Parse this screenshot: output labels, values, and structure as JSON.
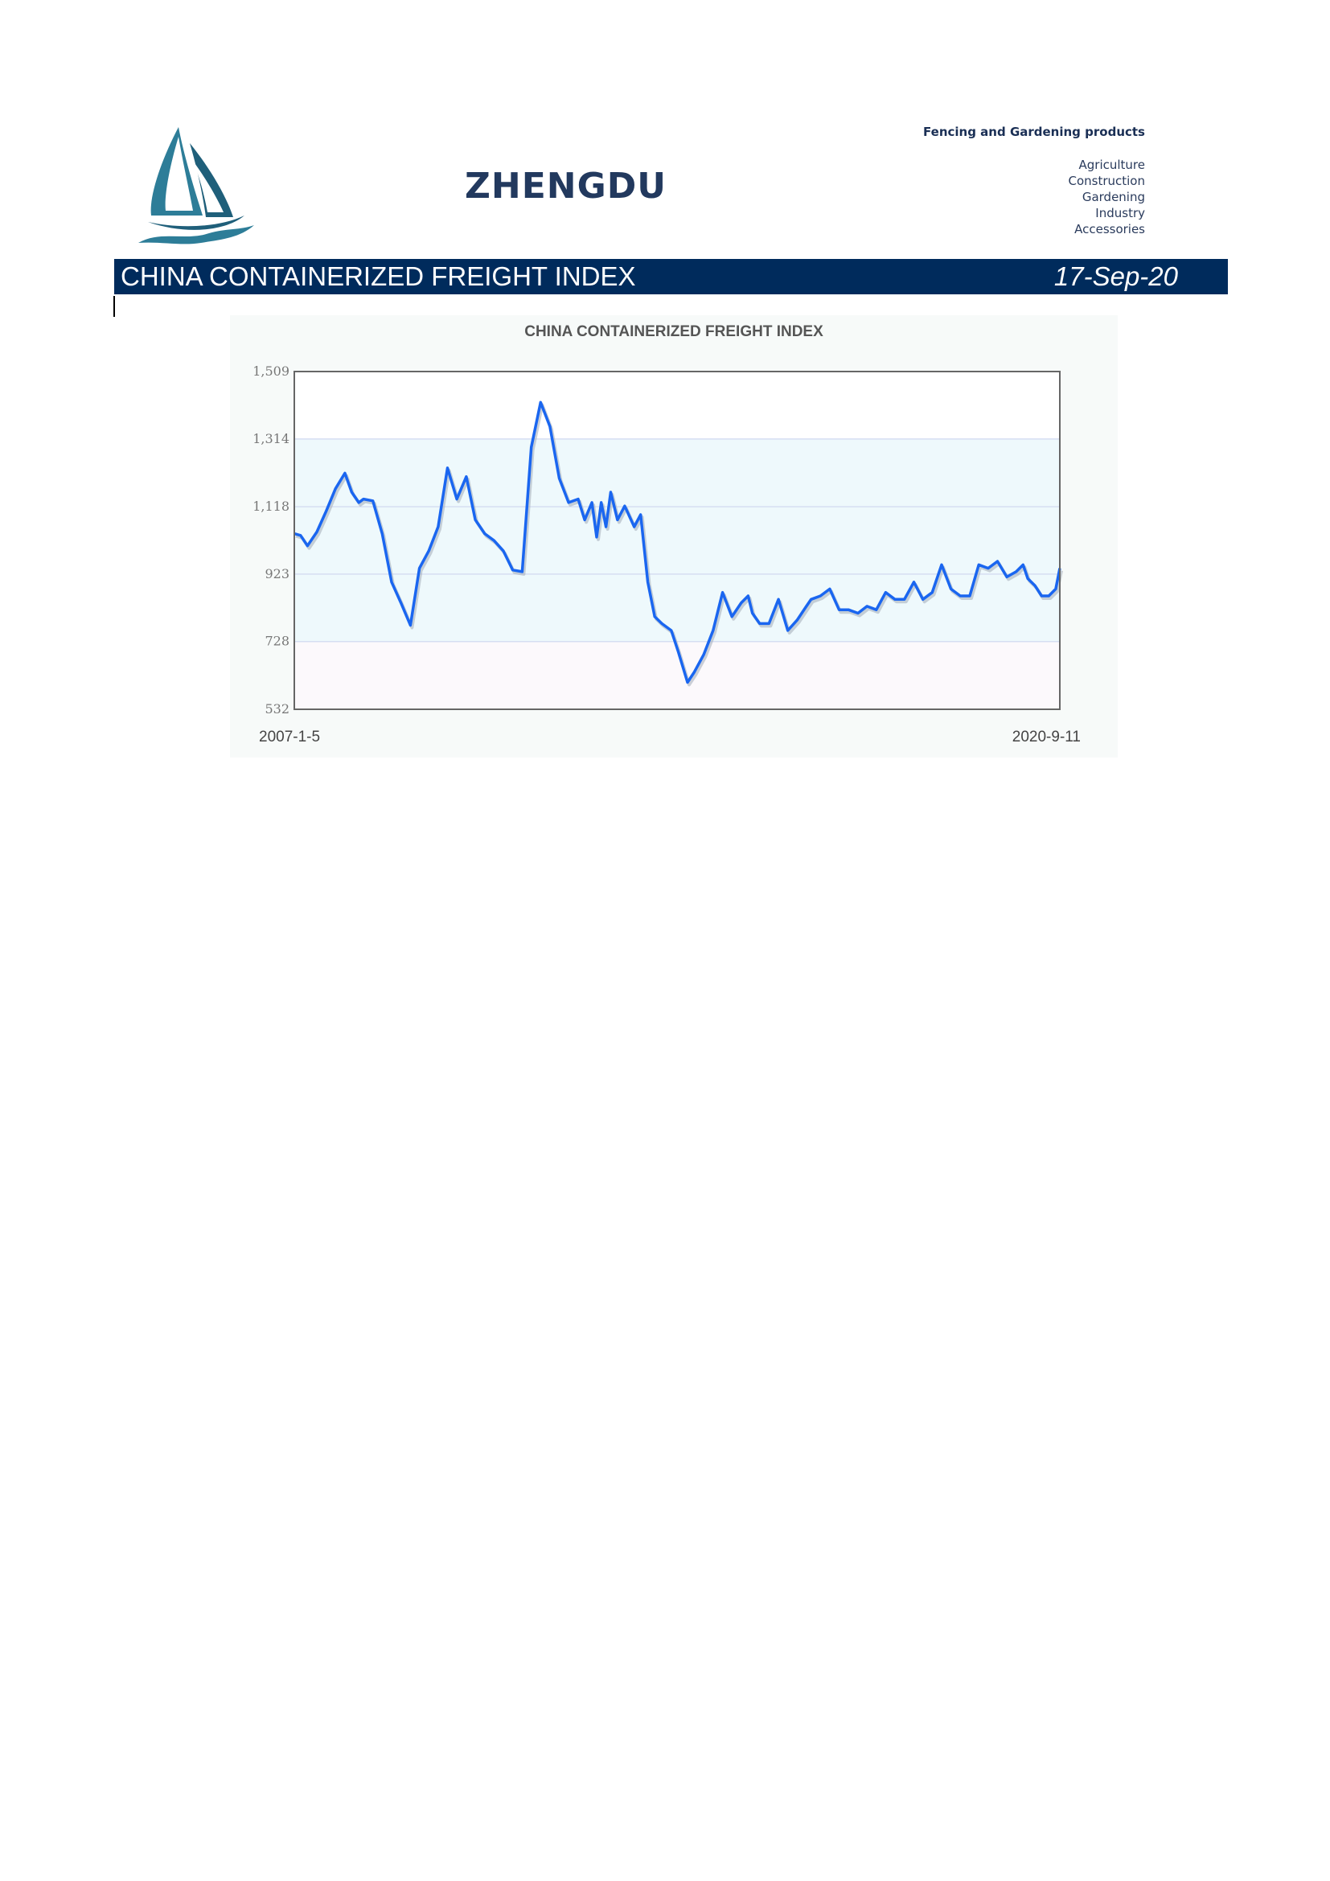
{
  "header": {
    "brand": "ZHENGDU",
    "tagline": "Fencing and Gardening products",
    "categories": [
      "Agriculture",
      "Construction",
      "Gardening",
      "Industry",
      "Accessories"
    ]
  },
  "title_bar": {
    "heading": "CHINA CONTAINERIZED FREIGHT INDEX",
    "date": "17-Sep-20"
  },
  "colors": {
    "title_bar_bg": "#002b5c",
    "brand_text": "#22395e",
    "line": "#1a66f0",
    "line_shadow": "#a9b0bc",
    "band_blue": "#eef9fc",
    "band_pink": "#fcf9fc",
    "grid": "#d6def2",
    "logo_teal": "#1f5f7a"
  },
  "chart_data": {
    "type": "line",
    "title": "CHINA CONTAINERIZED FREIGHT INDEX",
    "x_start_label": "2007-1-5",
    "x_end_label": "2020-9-11",
    "x_range": [
      "2007-01-05",
      "2020-09-11"
    ],
    "y_ticks": [
      "532",
      "728",
      "923",
      "1,118",
      "1,314",
      "1,509"
    ],
    "ylim": [
      532,
      1509
    ],
    "grid": true,
    "series": [
      {
        "x": [
          "2007-01-05",
          "2007-02-15",
          "2007-04-01",
          "2007-06-01",
          "2007-08-01",
          "2007-10-01",
          "2007-12-01",
          "2008-01-15",
          "2008-03-01",
          "2008-04-01",
          "2008-06-01",
          "2008-08-01",
          "2008-10-01",
          "2008-12-01",
          "2009-02-01",
          "2009-04-01",
          "2009-06-01",
          "2009-08-01",
          "2009-10-01",
          "2009-12-01",
          "2010-02-01",
          "2010-04-01",
          "2010-06-01",
          "2010-08-01",
          "2010-10-01",
          "2010-12-01",
          "2011-02-01",
          "2011-04-01",
          "2011-06-01",
          "2011-08-01",
          "2011-10-01",
          "2011-12-01",
          "2012-02-01",
          "2012-03-15",
          "2012-05-01",
          "2012-06-01",
          "2012-07-01",
          "2012-08-01",
          "2012-09-01",
          "2012-10-15",
          "2012-12-01",
          "2013-02-01",
          "2013-03-15",
          "2013-05-01",
          "2013-06-15",
          "2013-08-01",
          "2013-10-01",
          "2013-11-15",
          "2014-01-15",
          "2014-03-01",
          "2014-05-01",
          "2014-07-01",
          "2014-09-01",
          "2014-11-01",
          "2015-01-01",
          "2015-02-15",
          "2015-03-15",
          "2015-05-01",
          "2015-07-01",
          "2015-09-01",
          "2015-11-01",
          "2016-01-01",
          "2016-03-01",
          "2016-04-01",
          "2016-06-01",
          "2016-08-01",
          "2016-10-01",
          "2016-12-01",
          "2017-02-01",
          "2017-04-01",
          "2017-06-01",
          "2017-08-01",
          "2017-10-01",
          "2017-12-01",
          "2018-02-01",
          "2018-04-01",
          "2018-06-01",
          "2018-08-01",
          "2018-10-01",
          "2018-12-01",
          "2019-02-01",
          "2019-04-01",
          "2019-06-01",
          "2019-08-01",
          "2019-10-01",
          "2019-12-01",
          "2020-01-15",
          "2020-02-15",
          "2020-04-01",
          "2020-05-15",
          "2020-07-01",
          "2020-08-15",
          "2020-09-11"
        ],
        "y": [
          1040,
          1035,
          1005,
          1045,
          1105,
          1170,
          1215,
          1160,
          1130,
          1140,
          1135,
          1040,
          900,
          840,
          775,
          940,
          990,
          1060,
          1230,
          1140,
          1205,
          1080,
          1040,
          1020,
          990,
          935,
          930,
          1290,
          1420,
          1350,
          1200,
          1130,
          1140,
          1080,
          1130,
          1030,
          1130,
          1060,
          1160,
          1080,
          1120,
          1060,
          1095,
          900,
          800,
          780,
          760,
          700,
          610,
          640,
          690,
          760,
          870,
          800,
          840,
          860,
          810,
          780,
          780,
          850,
          760,
          790,
          830,
          850,
          860,
          880,
          820,
          820,
          810,
          830,
          820,
          870,
          850,
          850,
          900,
          850,
          870,
          950,
          880,
          860,
          860,
          950,
          940,
          960,
          915,
          930,
          950,
          910,
          890,
          860,
          860,
          880,
          940
        ]
      }
    ]
  }
}
